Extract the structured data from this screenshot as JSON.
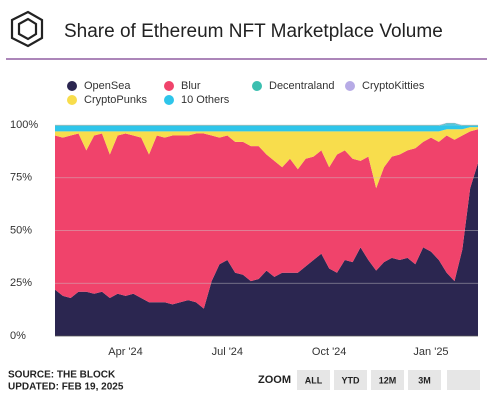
{
  "chart_data": {
    "type": "stacked_area",
    "title": "Share of Ethereum NFT Marketplace Volume",
    "categories": [
      null,
      null,
      null,
      null,
      null,
      null,
      null,
      null,
      null,
      "Apr '24",
      null,
      null,
      null,
      null,
      null,
      null,
      null,
      null,
      null,
      null,
      null,
      null,
      "Jul '24",
      null,
      null,
      null,
      null,
      null,
      null,
      null,
      null,
      null,
      null,
      null,
      null,
      "Oct '24",
      null,
      null,
      null,
      null,
      null,
      null,
      null,
      null,
      null,
      null,
      null,
      null,
      "Jan '25",
      null,
      null,
      null,
      null,
      null,
      null
    ],
    "series": [
      {
        "name": "OpenSea",
        "color": "#2b2650",
        "values": [
          22,
          19,
          18,
          21,
          21,
          20,
          21,
          18,
          20,
          19,
          20,
          18,
          16,
          16,
          16,
          15,
          16,
          17,
          16,
          13,
          26,
          34,
          36,
          30,
          29,
          26,
          27,
          31,
          28,
          30,
          30,
          30,
          33,
          36,
          39,
          32,
          30,
          36,
          35,
          42,
          36,
          31,
          35,
          37,
          36,
          37,
          34,
          42,
          40,
          36,
          30,
          26,
          41,
          70,
          82
        ]
      },
      {
        "name": "Blur",
        "color": "#f0436b",
        "values": [
          73,
          75,
          77,
          75,
          67,
          75,
          75,
          68,
          75,
          77,
          75,
          76,
          70,
          79,
          78,
          80,
          79,
          78,
          80,
          83,
          69,
          60,
          59,
          62,
          63,
          64,
          63,
          55,
          55,
          50,
          54,
          49,
          51,
          49,
          49,
          48,
          56,
          52,
          49,
          41,
          49,
          39,
          45,
          48,
          50,
          51,
          55,
          50,
          54,
          56,
          65,
          67,
          54,
          27,
          16
        ]
      },
      {
        "name": "CryptoPunks",
        "color": "#f8dd4c",
        "values": [
          2,
          3,
          2,
          1,
          9,
          2,
          1,
          11,
          2,
          1,
          2,
          3,
          11,
          2,
          3,
          2,
          2,
          2,
          1,
          1,
          2,
          3,
          2,
          5,
          5,
          7,
          7,
          11,
          14,
          17,
          13,
          18,
          13,
          12,
          9,
          17,
          11,
          9,
          13,
          14,
          12,
          27,
          17,
          12,
          11,
          9,
          8,
          5,
          3,
          5,
          3,
          5,
          3,
          2,
          1
        ]
      },
      {
        "name": "10 Others",
        "color": "#2ec5ea",
        "values": [
          2.5,
          2.5,
          2.5,
          2.5,
          2.5,
          2.5,
          2.5,
          2.5,
          2.5,
          2.5,
          2.5,
          2.5,
          2.5,
          2.5,
          2.5,
          2.5,
          2.5,
          2.5,
          2.5,
          2.5,
          2.5,
          2.5,
          2.5,
          2.5,
          2.5,
          2.5,
          2.5,
          2.5,
          2.5,
          2.5,
          2.5,
          2.5,
          2.5,
          2.5,
          2.5,
          2.5,
          2.5,
          2.5,
          2.5,
          2.5,
          2.5,
          2.5,
          2.5,
          2.5,
          2.5,
          2.5,
          2.5,
          2.5,
          2.5,
          2.5,
          2.5,
          2.5,
          1.5,
          0.5,
          0.5
        ]
      },
      {
        "name": "Decentraland",
        "color": "#3bbfb0",
        "values": [
          0.3,
          0.3,
          0.3,
          0.3,
          0.3,
          0.3,
          0.3,
          0.3,
          0.3,
          0.3,
          0.3,
          0.3,
          0.3,
          0.3,
          0.3,
          0.3,
          0.3,
          0.3,
          0.3,
          0.3,
          0.3,
          0.3,
          0.3,
          0.3,
          0.3,
          0.3,
          0.3,
          0.3,
          0.3,
          0.3,
          0.3,
          0.3,
          0.3,
          0.3,
          0.3,
          0.3,
          0.3,
          0.3,
          0.3,
          0.3,
          0.3,
          0.3,
          0.3,
          0.3,
          0.3,
          0.3,
          0.3,
          0.3,
          0.3,
          0.3,
          0.3,
          0.3,
          0.3,
          0.3,
          0.3
        ]
      },
      {
        "name": "CryptoKitties",
        "color": "#b7abe6",
        "values": [
          0.2,
          0.2,
          0.2,
          0.2,
          0.2,
          0.2,
          0.2,
          0.2,
          0.2,
          0.2,
          0.2,
          0.2,
          0.2,
          0.2,
          0.2,
          0.2,
          0.2,
          0.2,
          0.2,
          0.2,
          0.2,
          0.2,
          0.2,
          0.2,
          0.2,
          0.2,
          0.2,
          0.2,
          0.2,
          0.2,
          0.2,
          0.2,
          0.2,
          0.2,
          0.2,
          0.2,
          0.2,
          0.2,
          0.2,
          0.2,
          0.2,
          0.2,
          0.2,
          0.2,
          0.2,
          0.2,
          0.2,
          0.2,
          0.2,
          0.2,
          0.2,
          0.2,
          0.2,
          0.2,
          0.2
        ]
      }
    ],
    "ylim": [
      0,
      100
    ],
    "yticks": [
      {
        "value": 0,
        "label": "0%"
      },
      {
        "value": 25,
        "label": "25%"
      },
      {
        "value": 50,
        "label": "50%"
      },
      {
        "value": 75,
        "label": "75%"
      },
      {
        "value": 100,
        "label": "100%"
      }
    ],
    "grid": true,
    "source": "SOURCE: THE BLOCK",
    "updated": "UPDATED: FEB 19, 2025",
    "zoom": {
      "label": "ZOOM",
      "buttons": [
        "ALL",
        "YTD",
        "12M",
        "3M"
      ]
    }
  }
}
